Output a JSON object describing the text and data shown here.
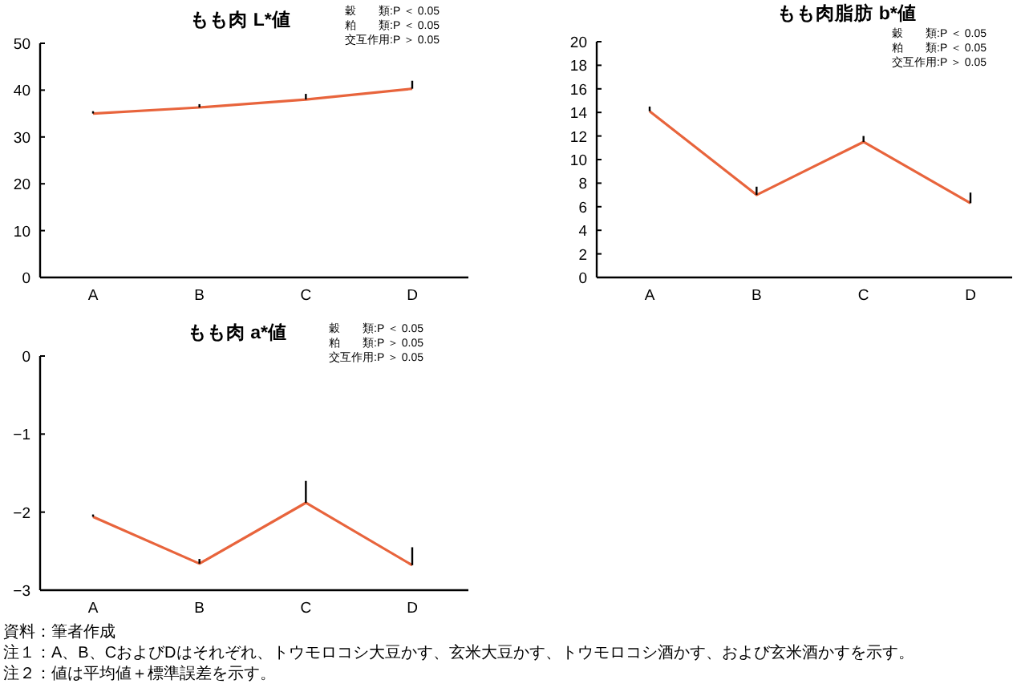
{
  "chart_data": [
    {
      "type": "line",
      "title": "もも肉 L*値",
      "categories": [
        "A",
        "B",
        "C",
        "D"
      ],
      "series": [
        {
          "color": "#e8643c",
          "values": [
            35,
            36.3,
            38,
            40.3
          ],
          "errors": [
            [
              35,
              35.5
            ],
            [
              36.3,
              37
            ],
            [
              38,
              39.2
            ],
            [
              40.3,
              42
            ]
          ]
        }
      ],
      "ylim": [
        0,
        50
      ],
      "yticks": [
        0,
        10,
        20,
        30,
        40,
        50
      ],
      "grid": false,
      "marker": "none",
      "line_style": "solid",
      "annotations": [
        "穀　　類:P ＜ 0.05",
        "粕　　類:P ＜ 0.05",
        "交互作用:P ＞ 0.05"
      ]
    },
    {
      "type": "line",
      "title": "もも肉脂肪 b*値",
      "categories": [
        "A",
        "B",
        "C",
        "D"
      ],
      "series": [
        {
          "color": "#e8643c",
          "values": [
            14.1,
            7.0,
            11.5,
            6.3
          ],
          "errors": [
            [
              14.1,
              14.5
            ],
            [
              7.0,
              7.7
            ],
            [
              11.5,
              12.0
            ],
            [
              6.3,
              7.2
            ]
          ]
        }
      ],
      "ylim": [
        0,
        20
      ],
      "yticks": [
        0,
        2,
        4,
        6,
        8,
        10,
        12,
        14,
        16,
        18,
        20
      ],
      "grid": false,
      "marker": "none",
      "line_style": "solid",
      "annotations": [
        "穀　　類:P ＜ 0.05",
        "粕　　類:P ＜ 0.05",
        "交互作用:P ＞ 0.05"
      ]
    },
    {
      "type": "line",
      "title": "もも肉 a*値",
      "categories": [
        "A",
        "B",
        "C",
        "D"
      ],
      "series": [
        {
          "color": "#e8643c",
          "values": [
            -2.06,
            -2.66,
            -1.88,
            -2.68
          ],
          "errors": [
            [
              -2.06,
              -2.03
            ],
            [
              -2.66,
              -2.6
            ],
            [
              -1.88,
              -1.6
            ],
            [
              -2.68,
              -2.45
            ]
          ]
        }
      ],
      "ylim": [
        -3,
        0
      ],
      "yticks": [
        -3,
        -2,
        -1,
        0
      ],
      "grid": false,
      "marker": "none",
      "line_style": "solid",
      "annotations": [
        "穀　　類:P ＜ 0.05",
        "粕　　類:P ＞ 0.05",
        "交互作用:P ＞ 0.05",
        "資料：筆者作成",
        "注１：A、B、CおよびDはそれぞれ、トウモロコシ大豆かす、玄米大豆かす、トウモロコシ酒かす、および玄米酒かすを示す。",
        "注２：値は平均値＋標準誤差を示す。"
      ]
    }
  ]
}
